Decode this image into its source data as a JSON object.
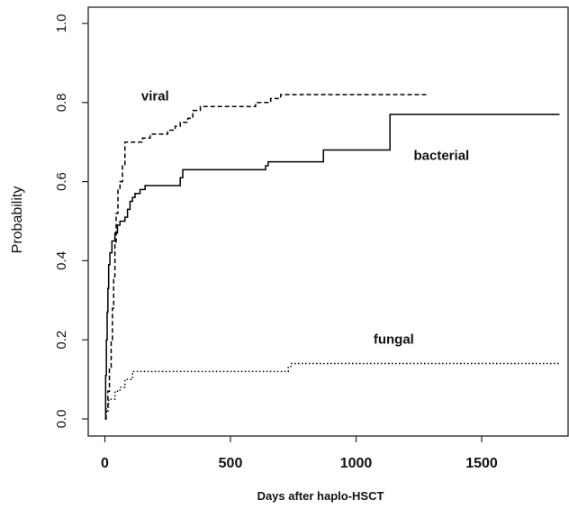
{
  "chart_data": {
    "type": "line",
    "title": "",
    "xlabel": "Days after haplo-HSCT",
    "ylabel": "Probability",
    "xlim": [
      -30,
      1830
    ],
    "ylim": [
      0.0,
      1.0
    ],
    "x_ticks": [
      0,
      500,
      1000,
      1500
    ],
    "x_tick_labels": [
      "0",
      "500",
      "1000",
      "1500"
    ],
    "y_ticks": [
      0.0,
      0.2,
      0.4,
      0.6,
      0.8,
      1.0
    ],
    "y_tick_labels": [
      "0.0",
      "0.2",
      "0.4",
      "0.6",
      "0.8",
      "1.0"
    ],
    "grid": false,
    "legend": "none",
    "series": [
      {
        "name": "viral",
        "line_style": "dashed",
        "color": "#000000",
        "steps": [
          [
            0,
            0.0
          ],
          [
            5,
            0.02
          ],
          [
            12,
            0.07
          ],
          [
            18,
            0.13
          ],
          [
            25,
            0.2
          ],
          [
            30,
            0.28
          ],
          [
            35,
            0.36
          ],
          [
            40,
            0.44
          ],
          [
            45,
            0.52
          ],
          [
            52,
            0.58
          ],
          [
            60,
            0.6
          ],
          [
            70,
            0.64
          ],
          [
            80,
            0.7
          ],
          [
            150,
            0.71
          ],
          [
            180,
            0.72
          ],
          [
            250,
            0.73
          ],
          [
            280,
            0.74
          ],
          [
            300,
            0.75
          ],
          [
            330,
            0.76
          ],
          [
            350,
            0.78
          ],
          [
            380,
            0.79
          ],
          [
            600,
            0.8
          ],
          [
            660,
            0.81
          ],
          [
            700,
            0.82
          ],
          [
            1290,
            0.82
          ]
        ]
      },
      {
        "name": "bacterial",
        "line_style": "solid",
        "color": "#000000",
        "steps": [
          [
            0,
            0.0
          ],
          [
            3,
            0.11
          ],
          [
            6,
            0.2
          ],
          [
            9,
            0.27
          ],
          [
            12,
            0.33
          ],
          [
            15,
            0.39
          ],
          [
            20,
            0.42
          ],
          [
            28,
            0.45
          ],
          [
            40,
            0.47
          ],
          [
            50,
            0.49
          ],
          [
            60,
            0.5
          ],
          [
            80,
            0.51
          ],
          [
            90,
            0.53
          ],
          [
            100,
            0.55
          ],
          [
            110,
            0.56
          ],
          [
            120,
            0.57
          ],
          [
            140,
            0.58
          ],
          [
            160,
            0.59
          ],
          [
            300,
            0.61
          ],
          [
            310,
            0.63
          ],
          [
            640,
            0.64
          ],
          [
            650,
            0.65
          ],
          [
            870,
            0.68
          ],
          [
            1135,
            0.77
          ],
          [
            1810,
            0.77
          ]
        ]
      },
      {
        "name": "fungal",
        "line_style": "dotted",
        "color": "#000000",
        "steps": [
          [
            0,
            0.0
          ],
          [
            5,
            0.03
          ],
          [
            15,
            0.05
          ],
          [
            40,
            0.07
          ],
          [
            60,
            0.08
          ],
          [
            80,
            0.1
          ],
          [
            110,
            0.12
          ],
          [
            730,
            0.13
          ],
          [
            740,
            0.14
          ],
          [
            1810,
            0.14
          ]
        ]
      }
    ],
    "annotations": [
      {
        "text": "viral",
        "x": 200,
        "y": 0.805
      },
      {
        "text": "bacterial",
        "x": 1340,
        "y": 0.655
      },
      {
        "text": "fungal",
        "x": 1150,
        "y": 0.19
      }
    ]
  }
}
